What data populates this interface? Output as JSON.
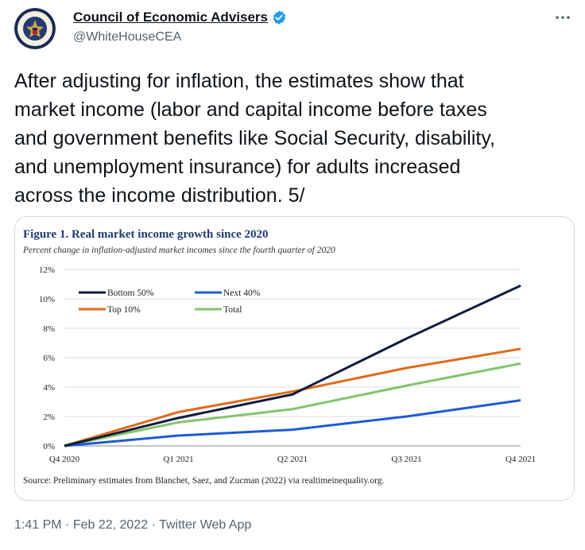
{
  "author": {
    "display_name": "Council of Economic Advisers",
    "handle": "@WhiteHouseCEA",
    "verified": true,
    "avatar_icon": "presidential-seal-icon"
  },
  "more_icon": "more-dots-icon",
  "tweet_text": "After adjusting for inflation, the estimates show that\nmarket income (labor and capital income before taxes\nand government benefits like Social Security, disability,\nand unemployment insurance) for adults increased\nacross the income distribution. 5/",
  "meta": {
    "time": "1:41 PM",
    "date": "Feb 22, 2022",
    "client": "Twitter Web App",
    "separator": "·"
  },
  "colors": {
    "verified": "#1d9bf0",
    "secondary_text": "#536471",
    "border": "#cfd9de"
  },
  "chart_data": {
    "type": "line",
    "title": "Figure 1. Real market income growth since 2020",
    "subtitle": "Percent change in inflation-adjusted market incomes since the fourth quarter of 2020",
    "source": "Source: Preliminary estimates from Blanchet, Saez, and Zucman (2022) via realtimeinequality.org.",
    "xlabel": "",
    "ylabel": "",
    "categories": [
      "Q4 2020",
      "Q1 2021",
      "Q2 2021",
      "Q3 2021",
      "Q4 2021"
    ],
    "ylim": [
      0,
      12
    ],
    "yticks": [
      "0%",
      "2%",
      "4%",
      "6%",
      "8%",
      "10%",
      "12%"
    ],
    "grid": true,
    "legend_position": "top-left",
    "series": [
      {
        "name": "Bottom 50%",
        "color": "#0d1b3e",
        "values": [
          0,
          1.9,
          3.5,
          7.3,
          10.9
        ]
      },
      {
        "name": "Next 40%",
        "color": "#1f5ad6",
        "values": [
          0,
          0.7,
          1.1,
          2.0,
          3.1
        ]
      },
      {
        "name": "Top 10%",
        "color": "#e06a1b",
        "values": [
          0,
          2.3,
          3.7,
          5.3,
          6.6
        ]
      },
      {
        "name": "Total",
        "color": "#82c46c",
        "values": [
          0,
          1.6,
          2.5,
          4.1,
          5.6
        ]
      }
    ]
  }
}
